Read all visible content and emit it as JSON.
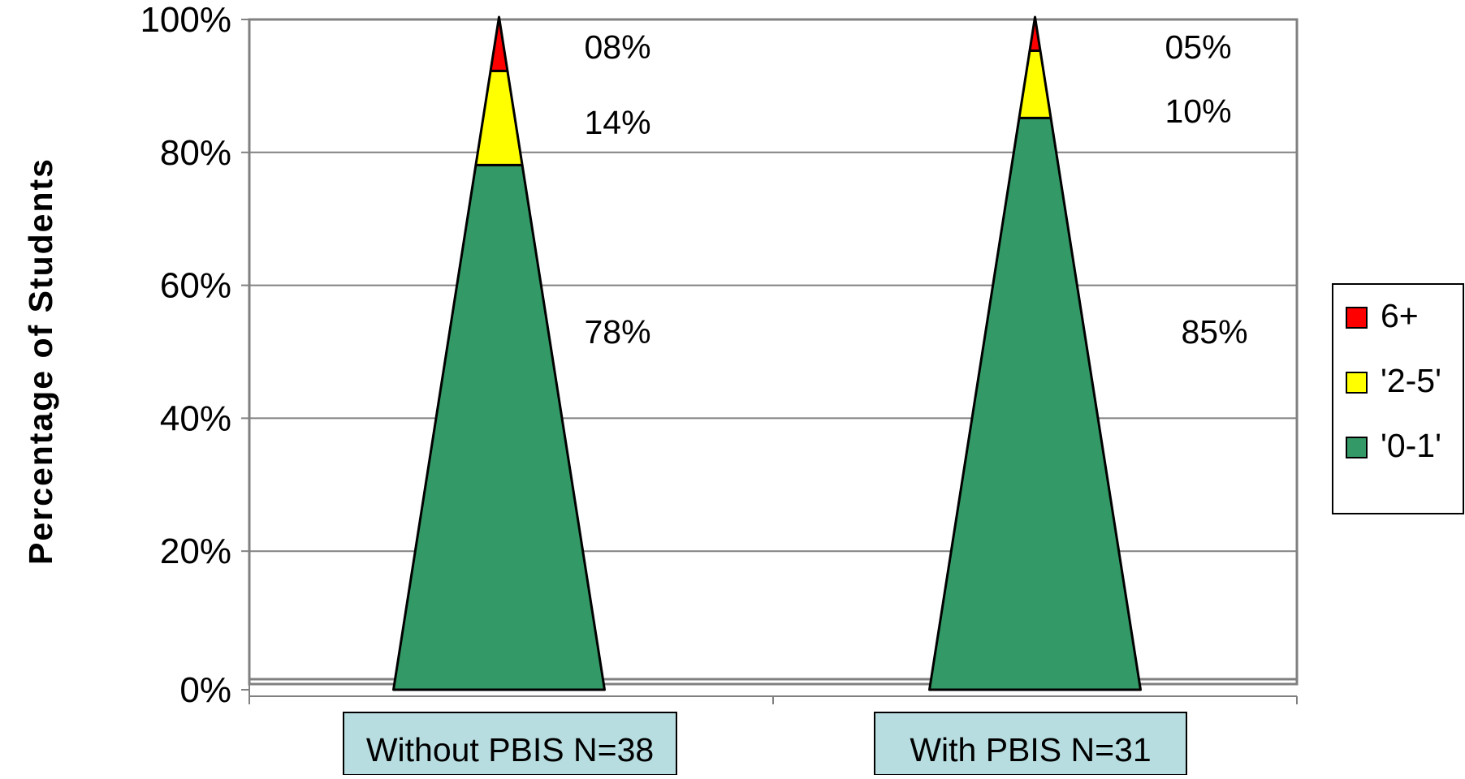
{
  "chart_data": {
    "type": "bar",
    "shape": "pyramid",
    "stacked": true,
    "percent_stacked": true,
    "ylabel": "Percentage of Students",
    "xlabel": "",
    "ylim": [
      0,
      100
    ],
    "y_ticks": [
      "0%",
      "20%",
      "40%",
      "60%",
      "80%",
      "100%"
    ],
    "y_tick_values": [
      0,
      20,
      40,
      60,
      80,
      100
    ],
    "grid": true,
    "legend_position": "right",
    "categories": [
      "Without PBIS N=38",
      "With PBIS N=31"
    ],
    "series": [
      {
        "name": "'0-1'",
        "color": "#339966",
        "values": [
          78,
          85
        ],
        "labels": [
          "78%",
          "85%"
        ]
      },
      {
        "name": "'2-5'",
        "color": "#ffff00",
        "values": [
          14,
          10
        ],
        "labels": [
          "14%",
          "10%"
        ]
      },
      {
        "name": "6+",
        "color": "#ff0000",
        "values": [
          8,
          5
        ],
        "labels": [
          "08%",
          "05%"
        ]
      }
    ],
    "legend_order": [
      "6+",
      "'2-5'",
      "'0-1'"
    ],
    "category_label_bg": "#b7dde0",
    "grid_color": "#808080",
    "outline_color": "#000000"
  }
}
